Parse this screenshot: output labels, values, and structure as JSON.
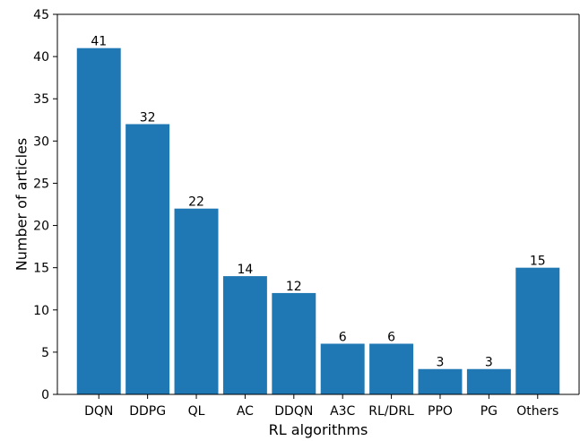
{
  "chart_data": {
    "type": "bar",
    "categories": [
      "DQN",
      "DDPG",
      "QL",
      "AC",
      "DDQN",
      "A3C",
      "RL/DRL",
      "PPO",
      "PG",
      "Others"
    ],
    "values": [
      41,
      32,
      22,
      14,
      12,
      6,
      6,
      3,
      3,
      15
    ],
    "data_labels": [
      "41",
      "32",
      "22",
      "14",
      "12",
      "6",
      "6",
      "3",
      "3",
      "15"
    ],
    "xlabel": "RL algorithms",
    "ylabel": "Number of articles",
    "ylim": [
      0,
      45
    ],
    "yticks": [
      0,
      5,
      10,
      15,
      20,
      25,
      30,
      35,
      40,
      45
    ],
    "ytick_labels": [
      "0",
      "5",
      "10",
      "15",
      "20",
      "25",
      "30",
      "35",
      "40",
      "45"
    ],
    "bar_color": "#1f77b4",
    "grid": false,
    "legend": "none"
  }
}
